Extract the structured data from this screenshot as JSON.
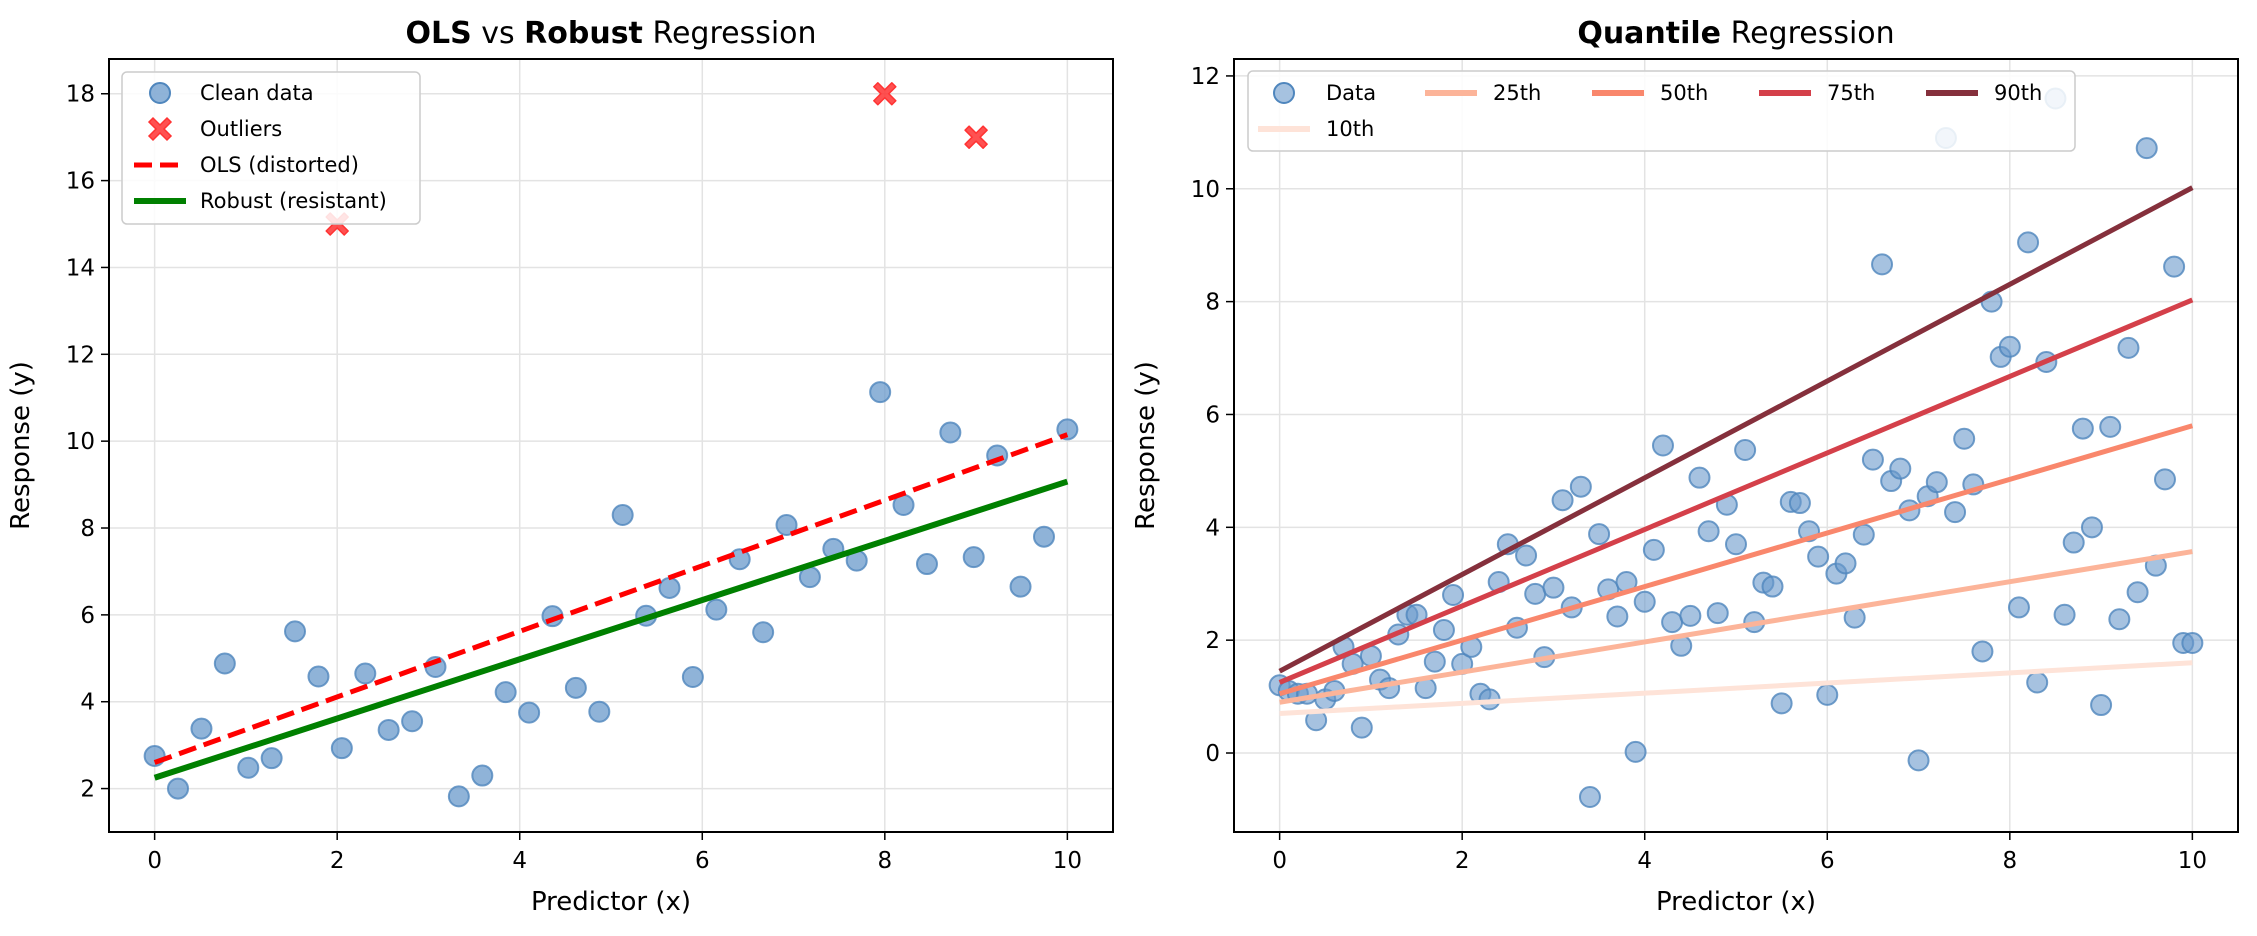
{
  "chart_data": [
    {
      "type": "scatter",
      "title": "OLS vs Robust Regression",
      "title_parts": [
        {
          "text": "OLS",
          "bold": true
        },
        {
          "text": " vs ",
          "bold": false
        },
        {
          "text": "Robust",
          "bold": true
        },
        {
          "text": " Regression",
          "bold": false
        }
      ],
      "xlabel": "Predictor (x)",
      "ylabel": "Response (y)",
      "xlim": [
        -0.5,
        10.5
      ],
      "ylim": [
        1.0,
        18.8
      ],
      "xticks": [
        0,
        2,
        4,
        6,
        8,
        10
      ],
      "yticks": [
        2,
        4,
        6,
        8,
        10,
        12,
        14,
        16,
        18
      ],
      "grid": true,
      "legend_position": "top-left",
      "legend": [
        {
          "label": "Clean data",
          "kind": "marker-circle",
          "color": "#6a9acb"
        },
        {
          "label": "Outliers",
          "kind": "marker-x",
          "color": "#ff3333"
        },
        {
          "label": "OLS (distorted)",
          "kind": "line-dashed",
          "color": "#ff0000"
        },
        {
          "label": "Robust (resistant)",
          "kind": "line-solid",
          "color": "#008000"
        }
      ],
      "series": [
        {
          "name": "Clean data",
          "kind": "scatter",
          "color": "#6a9acb",
          "x": [
            0,
            0.256,
            0.513,
            0.769,
            1.026,
            1.282,
            1.538,
            1.795,
            2.051,
            2.308,
            2.564,
            2.821,
            3.077,
            3.333,
            3.59,
            3.846,
            4.103,
            4.359,
            4.615,
            4.872,
            5.128,
            5.385,
            5.641,
            5.897,
            6.154,
            6.41,
            6.667,
            6.923,
            7.179,
            7.436,
            7.692,
            7.949,
            8.205,
            8.462,
            8.718,
            8.974,
            9.231,
            9.487,
            9.744,
            10
          ],
          "y": [
            2.75,
            2.0,
            3.38,
            4.88,
            2.48,
            2.7,
            5.62,
            4.58,
            2.93,
            4.65,
            3.35,
            3.55,
            4.8,
            1.82,
            2.3,
            4.22,
            3.75,
            5.97,
            4.32,
            3.77,
            8.3,
            5.98,
            6.62,
            4.57,
            6.12,
            7.28,
            5.6,
            8.07,
            6.87,
            7.52,
            7.25,
            11.13,
            8.53,
            7.17,
            10.2,
            7.33,
            9.67,
            6.65,
            7.8,
            10.27
          ]
        },
        {
          "name": "Outliers",
          "kind": "scatter-x",
          "color": "#ff3333",
          "x": [
            2,
            8,
            9
          ],
          "y": [
            15,
            18,
            17
          ]
        },
        {
          "name": "OLS (distorted)",
          "kind": "line-dashed",
          "color": "#ff0000",
          "x": [
            0,
            10
          ],
          "y": [
            2.6,
            10.15
          ]
        },
        {
          "name": "Robust (resistant)",
          "kind": "line-solid",
          "color": "#008000",
          "x": [
            0,
            10
          ],
          "y": [
            2.25,
            9.07
          ]
        }
      ]
    },
    {
      "type": "scatter",
      "title": "Quantile Regression",
      "title_parts": [
        {
          "text": "Quantile",
          "bold": true
        },
        {
          "text": " Regression",
          "bold": false
        }
      ],
      "xlabel": "Predictor (x)",
      "ylabel": "Response (y)",
      "xlim": [
        -0.5,
        10.5
      ],
      "ylim": [
        -1.4,
        12.3
      ],
      "xticks": [
        0,
        2,
        4,
        6,
        8,
        10
      ],
      "yticks": [
        0,
        2,
        4,
        6,
        8,
        10,
        12
      ],
      "grid": true,
      "legend_position": "top-left",
      "legend": [
        {
          "label": "Data",
          "kind": "marker-circle",
          "color": "#6a9acb"
        },
        {
          "label": "25th",
          "kind": "line-solid",
          "color": "#fcb499"
        },
        {
          "label": "50th",
          "kind": "line-solid",
          "color": "#f9876c"
        },
        {
          "label": "75th",
          "kind": "line-solid",
          "color": "#d4404a"
        },
        {
          "label": "90th",
          "kind": "line-solid",
          "color": "#85303c"
        },
        {
          "label": "10th",
          "kind": "line-solid",
          "color": "#fee3d8"
        }
      ],
      "series": [
        {
          "name": "Data",
          "kind": "scatter",
          "color": "#6a9acb",
          "x": [
            0,
            0.1,
            0.2,
            0.3,
            0.4,
            0.5,
            0.6,
            0.7,
            0.8,
            0.9,
            1.0,
            1.1,
            1.2,
            1.3,
            1.4,
            1.5,
            1.6,
            1.7,
            1.8,
            1.9,
            2.0,
            2.1,
            2.2,
            2.3,
            2.4,
            2.5,
            2.6,
            2.7,
            2.8,
            2.9,
            3.0,
            3.1,
            3.2,
            3.3,
            3.4,
            3.5,
            3.6,
            3.7,
            3.8,
            3.9,
            4.0,
            4.1,
            4.2,
            4.3,
            4.4,
            4.5,
            4.6,
            4.7,
            4.8,
            4.9,
            5.0,
            5.1,
            5.2,
            5.3,
            5.4,
            5.5,
            5.6,
            5.7,
            5.8,
            5.9,
            6.0,
            6.1,
            6.2,
            6.3,
            6.4,
            6.5,
            6.6,
            6.7,
            6.8,
            6.9,
            7.0,
            7.1,
            7.2,
            7.3,
            7.4,
            7.5,
            7.6,
            7.7,
            7.8,
            7.9,
            8.0,
            8.1,
            8.2,
            8.3,
            8.4,
            8.5,
            8.6,
            8.7,
            8.8,
            8.9,
            9.0,
            9.1,
            9.2,
            9.3,
            9.4,
            9.5,
            9.6,
            9.7,
            9.8,
            9.9,
            10.0
          ],
          "y": [
            1.2,
            1.1,
            1.05,
            1.05,
            0.58,
            0.95,
            1.1,
            1.88,
            1.58,
            0.45,
            1.72,
            1.3,
            1.15,
            2.1,
            2.45,
            2.45,
            1.15,
            1.62,
            2.18,
            2.8,
            1.58,
            1.88,
            1.05,
            0.95,
            3.03,
            3.7,
            2.22,
            3.5,
            2.82,
            1.7,
            2.93,
            4.48,
            2.58,
            4.72,
            -0.78,
            3.88,
            2.9,
            2.42,
            3.03,
            0.02,
            2.68,
            3.6,
            5.45,
            2.32,
            1.9,
            2.43,
            4.88,
            3.93,
            2.48,
            4.4,
            3.7,
            5.37,
            2.32,
            3.02,
            2.95,
            0.88,
            4.45,
            4.43,
            3.93,
            3.48,
            1.03,
            3.18,
            3.36,
            2.4,
            3.87,
            5.2,
            8.66,
            4.82,
            5.04,
            4.3,
            -0.13,
            4.55,
            4.8,
            10.9,
            4.27,
            5.57,
            4.76,
            1.8,
            8.0,
            7.02,
            7.2,
            2.58,
            9.05,
            1.25,
            6.93,
            11.6,
            2.45,
            3.73,
            5.75,
            4.0,
            0.85,
            5.78,
            2.37,
            7.18,
            2.85,
            10.72,
            3.32,
            4.85,
            8.62,
            1.95,
            1.95
          ]
        },
        {
          "name": "10th",
          "kind": "line-solid",
          "color": "#fee3d8",
          "x": [
            0,
            10
          ],
          "y": [
            0.7,
            1.6
          ]
        },
        {
          "name": "25th",
          "kind": "line-solid",
          "color": "#fcb499",
          "x": [
            0,
            10
          ],
          "y": [
            0.9,
            3.57
          ]
        },
        {
          "name": "50th",
          "kind": "line-solid",
          "color": "#f9876c",
          "x": [
            0,
            10
          ],
          "y": [
            1.05,
            5.8
          ]
        },
        {
          "name": "75th",
          "kind": "line-solid",
          "color": "#d4404a",
          "x": [
            0,
            10
          ],
          "y": [
            1.25,
            8.03
          ]
        },
        {
          "name": "90th",
          "kind": "line-solid",
          "color": "#85303c",
          "x": [
            0,
            10
          ],
          "y": [
            1.45,
            10.02
          ]
        }
      ]
    }
  ]
}
